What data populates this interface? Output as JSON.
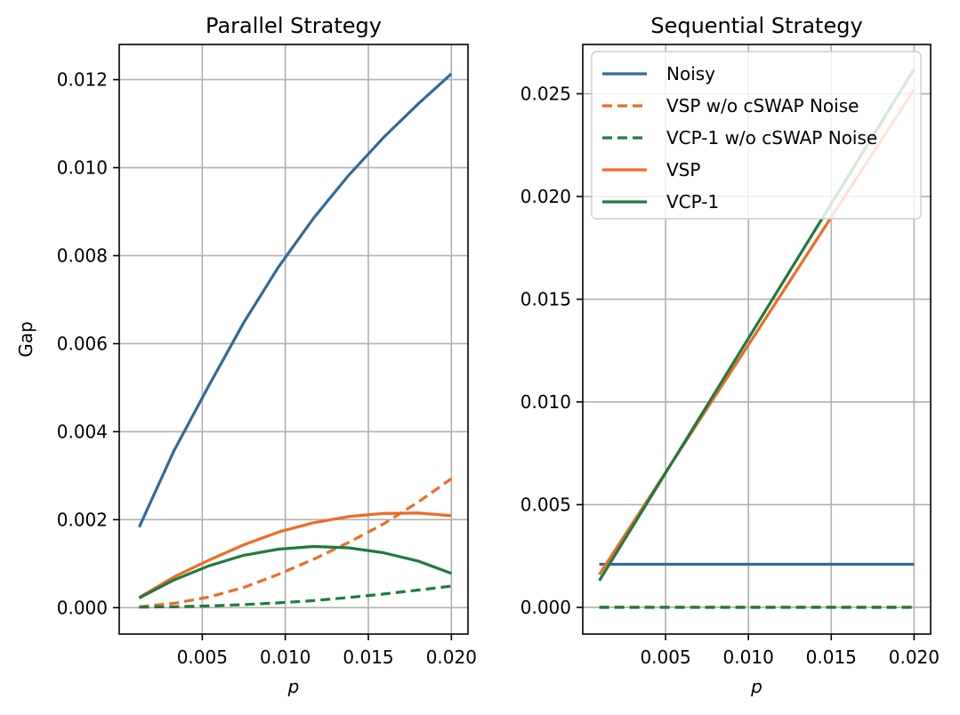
{
  "colors": {
    "noisy": "#336a98",
    "vsp": "#ee6b26",
    "vcp": "#1f7a3e"
  },
  "chart_data": [
    {
      "type": "line",
      "title": "Parallel Strategy",
      "xlabel": "p",
      "ylabel": "Gap",
      "xlim": [
        0.0,
        0.021
      ],
      "ylim": [
        -0.0006,
        0.0128
      ],
      "xticks": [
        0.005,
        0.01,
        0.015,
        0.02
      ],
      "xtick_labels": [
        "0.005",
        "0.010",
        "0.015",
        "0.020"
      ],
      "yticks": [
        0.0,
        0.002,
        0.004,
        0.006,
        0.008,
        0.01,
        0.012
      ],
      "ytick_labels": [
        "0.000",
        "0.002",
        "0.004",
        "0.006",
        "0.008",
        "0.010",
        "0.012"
      ],
      "grid": true,
      "x": [
        0.0012,
        0.0033,
        0.0054,
        0.0075,
        0.0096,
        0.0117,
        0.0138,
        0.0159,
        0.018,
        0.02
      ],
      "series": [
        {
          "name": "Noisy",
          "color": "noisy",
          "dash": "solid",
          "values": [
            0.00183,
            0.00357,
            0.00505,
            0.00648,
            0.00775,
            0.00885,
            0.00982,
            0.01068,
            0.01145,
            0.01213
          ]
        },
        {
          "name": "VSP w/o cSWAP Noise",
          "color": "vsp",
          "dash": "dashed",
          "values": [
            2e-05,
            0.0001,
            0.00024,
            0.00046,
            0.00076,
            0.0011,
            0.00148,
            0.0019,
            0.0024,
            0.00293
          ]
        },
        {
          "name": "VCP-1 w/o cSWAP Noise",
          "color": "vcp",
          "dash": "dashed",
          "values": [
            1e-05,
            2e-05,
            4e-05,
            7e-05,
            0.00011,
            0.00016,
            0.00023,
            0.00031,
            0.0004,
            0.00049
          ]
        },
        {
          "name": "VSP",
          "color": "vsp",
          "dash": "solid",
          "values": [
            0.00023,
            0.0007,
            0.00108,
            0.00143,
            0.00172,
            0.00193,
            0.00207,
            0.00214,
            0.00215,
            0.00209
          ]
        },
        {
          "name": "VCP-1",
          "color": "vcp",
          "dash": "solid",
          "values": [
            0.00022,
            0.00063,
            0.00095,
            0.00119,
            0.00133,
            0.00139,
            0.00136,
            0.00125,
            0.00106,
            0.00078
          ]
        }
      ]
    },
    {
      "type": "line",
      "title": "Sequential Strategy",
      "xlabel": "p",
      "ylabel": "",
      "xlim": [
        0.0,
        0.021
      ],
      "ylim": [
        -0.0013,
        0.0274
      ],
      "xticks": [
        0.005,
        0.01,
        0.015,
        0.02
      ],
      "xtick_labels": [
        "0.005",
        "0.010",
        "0.015",
        "0.020"
      ],
      "yticks": [
        0.0,
        0.005,
        0.01,
        0.015,
        0.02,
        0.025
      ],
      "ytick_labels": [
        "0.000",
        "0.005",
        "0.010",
        "0.015",
        "0.020",
        "0.025"
      ],
      "grid": true,
      "legend": "upper-left",
      "x": [
        0.001,
        0.02
      ],
      "series": [
        {
          "name": "Noisy",
          "color": "noisy",
          "dash": "solid",
          "values": [
            0.0021,
            0.0021
          ]
        },
        {
          "name": "VSP w/o cSWAP Noise",
          "color": "vsp",
          "dash": "dashed",
          "values": [
            1e-05,
            1e-05
          ]
        },
        {
          "name": "VCP-1 w/o cSWAP Noise",
          "color": "vcp",
          "dash": "dashed",
          "values": [
            0.0,
            0.0
          ]
        },
        {
          "name": "VSP",
          "color": "vsp",
          "dash": "solid",
          "values": [
            0.0016,
            0.0252
          ]
        },
        {
          "name": "VCP-1",
          "color": "vcp",
          "dash": "solid",
          "values": [
            0.0013,
            0.0262
          ]
        }
      ]
    }
  ]
}
